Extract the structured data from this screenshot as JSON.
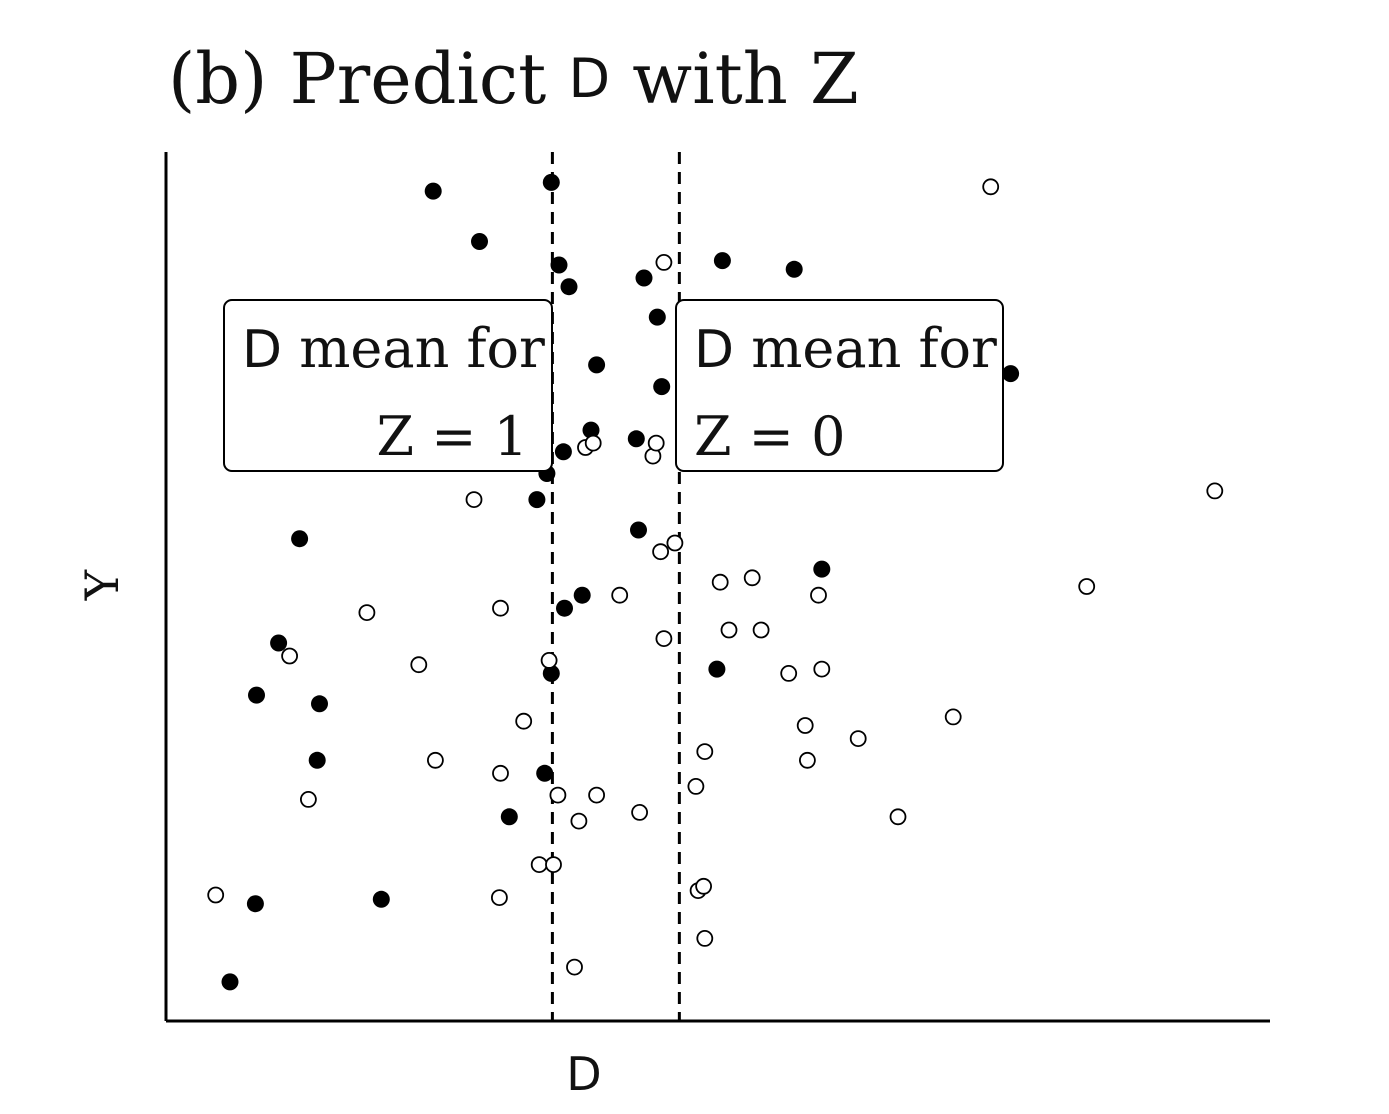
{
  "chart_data": {
    "type": "scatter",
    "title": {
      "prefix": "(b) Predict ",
      "var": "D",
      "suffix": " with Z"
    },
    "xlabel": "D",
    "ylabel": "Y",
    "xlim": [
      0,
      100
    ],
    "ylim": [
      0,
      100
    ],
    "grid": false,
    "series": [
      {
        "marker": "filled",
        "color": "#000000",
        "points": [
          [
            5.8,
            4.5
          ],
          [
            8.1,
            13.5
          ],
          [
            8.2,
            37.5
          ],
          [
            10.2,
            43.5
          ],
          [
            12.1,
            55.5
          ],
          [
            13.7,
            30.0
          ],
          [
            13.9,
            36.5
          ],
          [
            19.5,
            14.0
          ],
          [
            24.2,
            95.5
          ],
          [
            28.4,
            89.7
          ],
          [
            31.1,
            23.5
          ],
          [
            33.6,
            60.0
          ],
          [
            34.0,
            67.5
          ],
          [
            34.3,
            28.5
          ],
          [
            34.5,
            63.0
          ],
          [
            34.9,
            40.0
          ],
          [
            34.9,
            96.5
          ],
          [
            35.6,
            87.0
          ],
          [
            36.0,
            65.5
          ],
          [
            36.1,
            47.5
          ],
          [
            36.5,
            84.5
          ],
          [
            37.7,
            49.0
          ],
          [
            39.0,
            75.5
          ],
          [
            38.5,
            68.0
          ],
          [
            42.6,
            67.0
          ],
          [
            42.8,
            56.5
          ],
          [
            43.3,
            85.5
          ],
          [
            44.5,
            81.0
          ],
          [
            44.9,
            73.0
          ],
          [
            50.4,
            87.5
          ],
          [
            49.9,
            40.5
          ],
          [
            56.9,
            86.5
          ],
          [
            59.4,
            52.0
          ],
          [
            76.5,
            74.5
          ]
        ]
      },
      {
        "marker": "open",
        "color": "#000000",
        "points": [
          [
            4.5,
            14.5
          ],
          [
            11.2,
            42.0
          ],
          [
            12.9,
            25.5
          ],
          [
            18.2,
            47.0
          ],
          [
            22.9,
            41.0
          ],
          [
            24.4,
            30.0
          ],
          [
            27.9,
            60.0
          ],
          [
            30.2,
            14.2
          ],
          [
            30.3,
            47.5
          ],
          [
            30.3,
            28.5
          ],
          [
            32.4,
            34.5
          ],
          [
            33.8,
            18.0
          ],
          [
            34.7,
            41.5
          ],
          [
            35.1,
            18.0
          ],
          [
            35.5,
            26.0
          ],
          [
            37.0,
            6.2
          ],
          [
            37.4,
            23.0
          ],
          [
            38.0,
            66.0
          ],
          [
            38.7,
            66.5
          ],
          [
            39.0,
            26.0
          ],
          [
            41.1,
            49.0
          ],
          [
            42.9,
            24.0
          ],
          [
            44.1,
            65.0
          ],
          [
            44.4,
            66.5
          ],
          [
            44.8,
            54.0
          ],
          [
            45.1,
            87.3
          ],
          [
            45.1,
            44.0
          ],
          [
            46.1,
            55.0
          ],
          [
            48.0,
            27.0
          ],
          [
            48.2,
            15.0
          ],
          [
            48.7,
            15.5
          ],
          [
            48.8,
            31.0
          ],
          [
            48.8,
            9.5
          ],
          [
            50.2,
            50.5
          ],
          [
            51.0,
            45.0
          ],
          [
            53.1,
            51.0
          ],
          [
            53.9,
            45.0
          ],
          [
            56.4,
            40.0
          ],
          [
            57.9,
            34.0
          ],
          [
            58.1,
            30.0
          ],
          [
            59.1,
            49.0
          ],
          [
            59.4,
            40.5
          ],
          [
            62.7,
            32.5
          ],
          [
            66.3,
            23.5
          ],
          [
            71.3,
            35.0
          ],
          [
            74.7,
            96.0
          ],
          [
            83.4,
            50.0
          ],
          [
            95.0,
            61.0
          ]
        ]
      }
    ],
    "reference_lines": [
      {
        "axis": "x",
        "value": 35,
        "style": "dashed",
        "label": {
          "var": "D",
          "text": " mean for",
          "line2": "Z = 1",
          "side": "left"
        }
      },
      {
        "axis": "x",
        "value": 46.5,
        "style": "dashed",
        "label": {
          "var": "D",
          "text": " mean for",
          "line2": "Z = 0",
          "side": "right"
        }
      }
    ]
  }
}
